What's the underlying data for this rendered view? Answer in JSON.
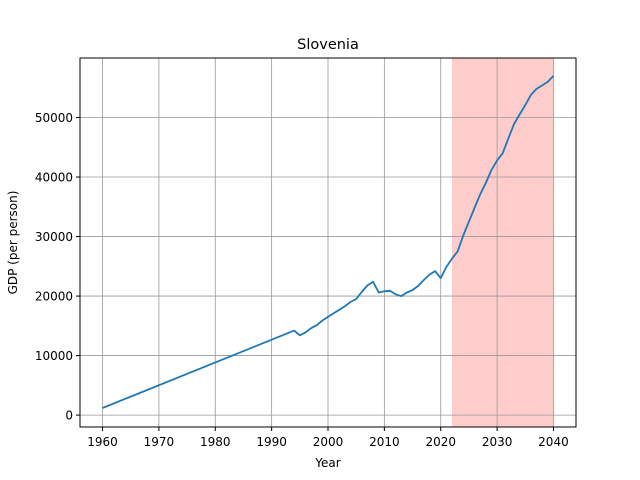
{
  "chart_data": {
    "type": "line",
    "title": "Slovenia",
    "xlabel": "Year",
    "ylabel": "GDP (per person)",
    "xlim": [
      1956,
      2044
    ],
    "ylim": [
      -2000,
      60000
    ],
    "xticks": [
      1960,
      1970,
      1980,
      1990,
      2000,
      2010,
      2020,
      2030,
      2040
    ],
    "yticks": [
      0,
      10000,
      20000,
      30000,
      40000,
      50000
    ],
    "grid": true,
    "colors": {
      "line": "#1f77b4",
      "shade": "#ffcccc",
      "grid": "#999999"
    },
    "shaded_region": {
      "x_start": 2022,
      "x_end": 2040
    },
    "series": [
      {
        "x": [
          1960,
          1994,
          1995,
          1996,
          1997,
          1998,
          1999,
          2000,
          2001,
          2002,
          2003,
          2004,
          2005,
          2006,
          2007,
          2008,
          2009,
          2010,
          2011,
          2012,
          2013,
          2014,
          2015,
          2016,
          2017,
          2018,
          2019,
          2020,
          2021,
          2022,
          2023,
          2024,
          2025,
          2026,
          2027,
          2028,
          2029,
          2030,
          2031,
          2032,
          2033,
          2034,
          2035,
          2036,
          2037,
          2038,
          2039,
          2040
        ],
        "y": [
          1200,
          14200,
          13400,
          13900,
          14600,
          15100,
          15900,
          16500,
          17100,
          17700,
          18300,
          19000,
          19500,
          20700,
          21800,
          22400,
          20600,
          20800,
          20900,
          20300,
          20000,
          20600,
          21000,
          21700,
          22700,
          23600,
          24200,
          23000,
          24900,
          26300,
          27500,
          30200,
          32500,
          34800,
          37100,
          39000,
          41200,
          42800,
          44000,
          46500,
          48900,
          50500,
          52100,
          53800,
          54800,
          55400,
          56000,
          57000
        ]
      }
    ]
  }
}
